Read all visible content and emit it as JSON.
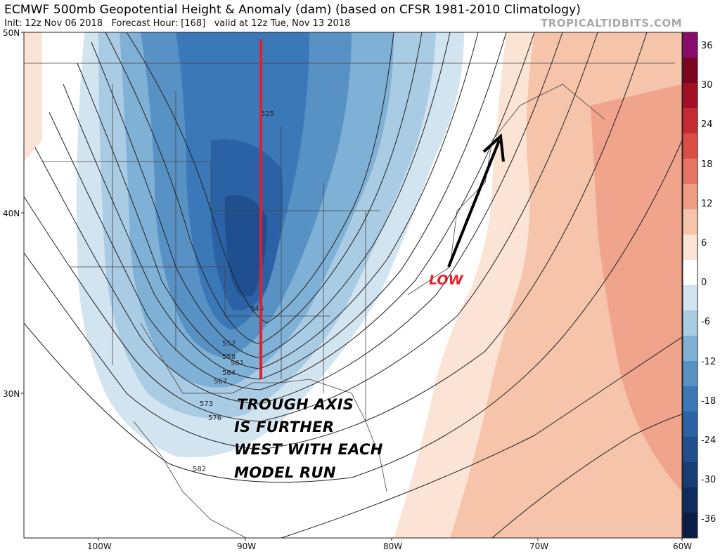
{
  "header": {
    "title": "ECMWF 500mb Geopotential Height & Anomaly (dam) (based on CFSR 1981-2010 Climatology)",
    "init_label": "Init:",
    "init": "12z Nov 06 2018",
    "forecast_label": "Forecast Hour:",
    "forecast_hour": "[168]",
    "valid": "valid at 12z Tue, Nov 13 2018",
    "brand": "TROPICALTIDBITS.COM"
  },
  "map": {
    "lat_labels": [
      "50N",
      "40N",
      "30N"
    ],
    "lon_labels": [
      "100W",
      "90W",
      "80W",
      "70W",
      "60W"
    ],
    "contour_labels": [
      "525",
      "546",
      "552",
      "558",
      "561",
      "564",
      "567",
      "573",
      "576",
      "582"
    ],
    "colors": {
      "deep_blue": "#1f4f8f",
      "mid_blue": "#3b78b8",
      "light_blue": "#a9cbe3",
      "salmon": "#f7c4a8",
      "deep_salmon": "#eba07f",
      "trough_line": "#e0202a",
      "arrow": "#000000"
    },
    "icons": [
      "trough-axis-line",
      "arrow-icon"
    ]
  },
  "annotations": {
    "low": "LOW",
    "trough_lines": [
      "TROUGH AXIS",
      "IS FURTHER",
      "WEST WITH EACH",
      "MODEL RUN"
    ]
  },
  "colorbar": {
    "labels": [
      "36",
      "30",
      "24",
      "18",
      "12",
      "6",
      "0",
      "-6",
      "-12",
      "-18",
      "-24",
      "-30",
      "-36"
    ],
    "colors": [
      "#8a0a6e",
      "#7a0520",
      "#a30f25",
      "#c62a32",
      "#db4d47",
      "#e67564",
      "#ef9c84",
      "#f6c3ab",
      "#fbe3d5",
      "#ffffff",
      "#d3e4f1",
      "#a9cbe3",
      "#7fb0d6",
      "#5892c5",
      "#3b78b8",
      "#2a62a5",
      "#1f4f8f",
      "#173d76",
      "#0f2c5c",
      "#0a1e45"
    ]
  }
}
